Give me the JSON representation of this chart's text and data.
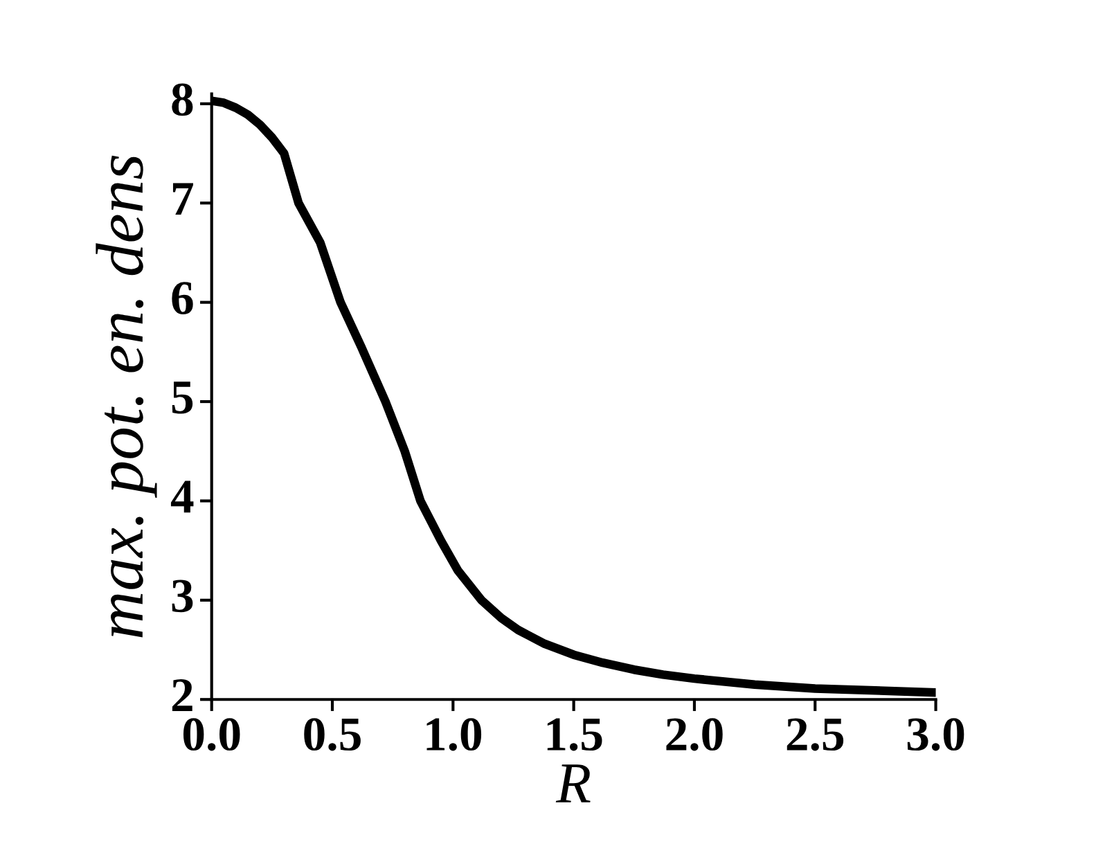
{
  "chart_data": {
    "type": "line",
    "xlabel": "R",
    "ylabel": "max. pot. en. dens",
    "x": [
      0,
      0.05,
      0.1,
      0.15,
      0.2,
      0.25,
      0.3,
      0.36,
      0.45,
      0.534,
      0.62,
      0.72,
      0.8,
      0.865,
      0.95,
      1.02,
      1.118,
      1.2,
      1.27,
      1.38,
      1.5,
      1.62,
      1.75,
      1.87,
      2.0,
      2.25,
      2.5,
      2.75,
      3.0
    ],
    "series": [
      {
        "color": "#000000",
        "values": [
          8.03,
          8.01,
          7.96,
          7.89,
          7.79,
          7.66,
          7.5,
          7.0,
          6.6,
          6.0,
          5.55,
          5.0,
          4.5,
          4.0,
          3.6,
          3.3,
          3.0,
          2.82,
          2.7,
          2.56,
          2.45,
          2.37,
          2.3,
          2.25,
          2.21,
          2.15,
          2.11,
          2.09,
          2.07
        ]
      }
    ],
    "xlim": [
      0,
      3.0
    ],
    "ylim": [
      2,
      8.1
    ],
    "xticks": [
      {
        "value": 0,
        "label": "0.0"
      },
      0.5,
      {
        "value": 1,
        "label": "1.0"
      },
      1.5,
      {
        "value": 2,
        "label": "2.0"
      },
      2.5,
      {
        "value": 3,
        "label": "3.0"
      }
    ],
    "yticks": [
      2,
      3,
      4,
      5,
      6,
      7,
      8
    ],
    "grid": false,
    "legend": false,
    "marker": "none",
    "line_style": "solid"
  }
}
